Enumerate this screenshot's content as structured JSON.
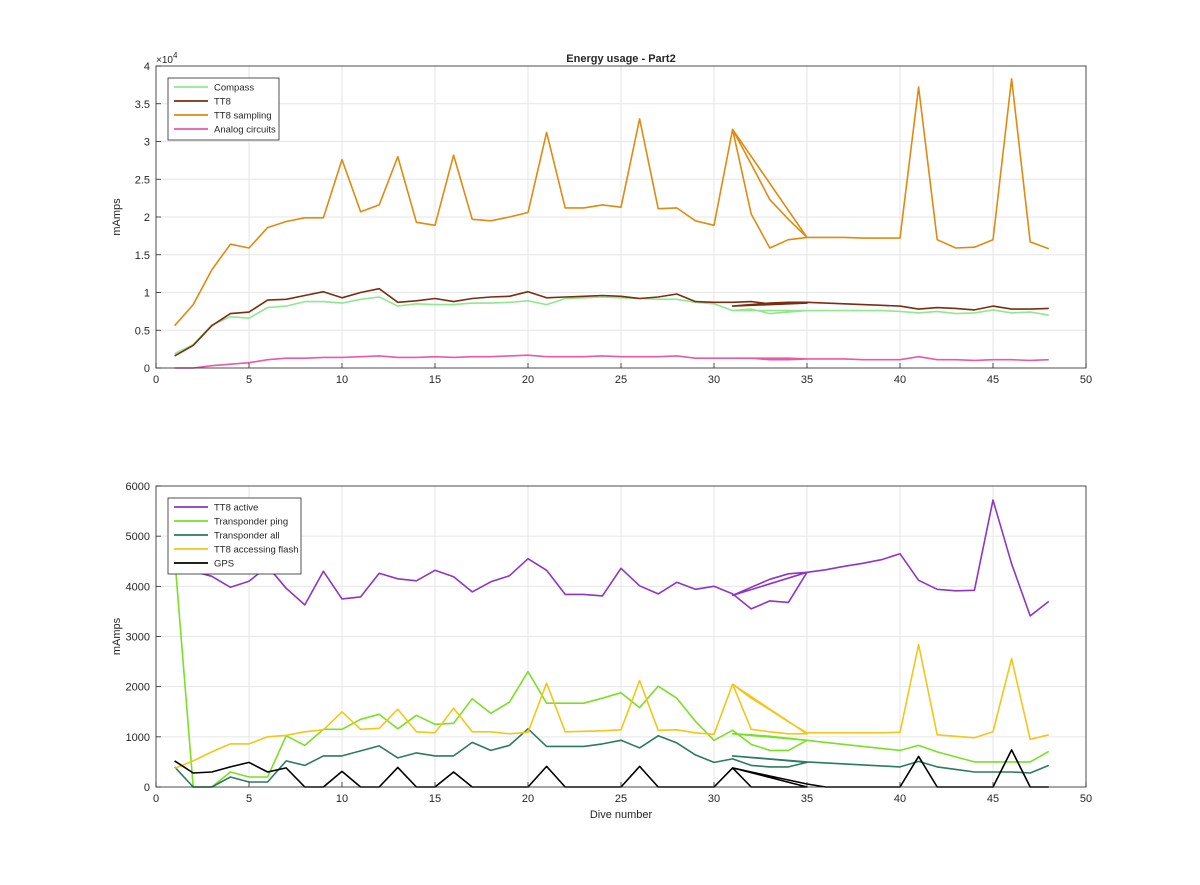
{
  "figure": {
    "title": "Energy usage - Part2"
  },
  "chart_data": [
    {
      "type": "line",
      "title": "Energy usage - Part2",
      "xlabel": "",
      "ylabel": "mAmps",
      "xlim": [
        0,
        50
      ],
      "ylim": [
        0,
        40000
      ],
      "x_ticks": [
        0,
        5,
        10,
        15,
        20,
        25,
        30,
        35,
        40,
        45,
        50
      ],
      "x_tick_labels": [
        "0",
        "5",
        "10",
        "15",
        "20",
        "25",
        "30",
        "35",
        "40",
        "45",
        "50"
      ],
      "y_ticks": [
        0,
        5000,
        10000,
        15000,
        20000,
        25000,
        30000,
        35000,
        40000
      ],
      "y_tick_labels": [
        "0",
        "0.5",
        "1",
        "1.5",
        "2",
        "2.5",
        "3",
        "3.5",
        "4"
      ],
      "y_exponent_label": "×10",
      "y_exponent_power": "4",
      "grid": true,
      "legend_position": "top-left",
      "x": [
        1,
        2,
        3,
        4,
        5,
        6,
        7,
        8,
        9,
        10,
        11,
        12,
        13,
        14,
        15,
        16,
        17,
        18,
        19,
        20,
        21,
        22,
        23,
        24,
        25,
        26,
        27,
        28,
        29,
        30,
        31,
        32,
        33,
        34,
        35,
        31,
        32,
        33,
        34,
        35,
        36,
        37,
        38,
        39,
        40,
        41,
        42,
        43,
        44,
        45,
        46,
        47,
        48
      ],
      "series": [
        {
          "name": "Compass",
          "color": "#8fe88f",
          "values": [
            1900,
            3100,
            5700,
            6800,
            6600,
            8000,
            8200,
            8800,
            8800,
            8600,
            9100,
            9400,
            8200,
            8500,
            8400,
            8400,
            8600,
            8600,
            8700,
            8900,
            8400,
            9200,
            9300,
            9400,
            9300,
            9200,
            9100,
            9100,
            8700,
            8500,
            7600,
            7800,
            7200,
            7400,
            7600,
            7600,
            7600,
            7600,
            7600,
            7600,
            7600,
            7600,
            7600,
            7600,
            7500,
            7300,
            7500,
            7200,
            7300,
            7700,
            7300,
            7400,
            7000
          ]
        },
        {
          "name": "TT8",
          "color": "#7a2e10",
          "values": [
            1600,
            3000,
            5600,
            7200,
            7400,
            9000,
            9100,
            9600,
            10100,
            9300,
            10000,
            10500,
            8700,
            8900,
            9200,
            8800,
            9200,
            9400,
            9500,
            10100,
            9300,
            9400,
            9500,
            9600,
            9500,
            9200,
            9400,
            9800,
            8800,
            8700,
            8700,
            8800,
            8500,
            8600,
            8600,
            8200,
            8400,
            8600,
            8700,
            8700,
            8600,
            8500,
            8400,
            8300,
            8200,
            7800,
            8000,
            7900,
            7700,
            8200,
            7800,
            7800,
            7900
          ]
        },
        {
          "name": "TT8 sampling",
          "color": "#e08a10",
          "values": [
            5600,
            8400,
            13000,
            16400,
            15900,
            18600,
            19400,
            19900,
            19900,
            27600,
            20700,
            21600,
            28000,
            19300,
            18900,
            28200,
            19700,
            19500,
            20000,
            20600,
            31200,
            21200,
            21200,
            21600,
            21300,
            33000,
            21100,
            21200,
            19500,
            18900,
            31600,
            20400,
            15900,
            17000,
            17300,
            31600,
            27000,
            22300,
            19700,
            17300,
            17300,
            17300,
            17200,
            17200,
            17200,
            37200,
            17000,
            15900,
            16000,
            17000,
            38300,
            16700,
            15800
          ]
        },
        {
          "name": "Analog circuits",
          "color": "#e85aa5",
          "values": [
            0,
            0,
            300,
            500,
            700,
            1100,
            1300,
            1300,
            1400,
            1400,
            1500,
            1600,
            1400,
            1400,
            1500,
            1400,
            1500,
            1500,
            1600,
            1700,
            1500,
            1500,
            1500,
            1600,
            1500,
            1500,
            1500,
            1600,
            1300,
            1300,
            1300,
            1300,
            1100,
            1100,
            1200,
            1300,
            1300,
            1300,
            1300,
            1200,
            1200,
            1200,
            1100,
            1100,
            1100,
            1500,
            1100,
            1100,
            1000,
            1100,
            1100,
            1000,
            1100
          ]
        }
      ]
    },
    {
      "type": "line",
      "title": "",
      "xlabel": "Dive number",
      "ylabel": "mAmps",
      "xlim": [
        0,
        50
      ],
      "ylim": [
        0,
        6000
      ],
      "x_ticks": [
        0,
        5,
        10,
        15,
        20,
        25,
        30,
        35,
        40,
        45,
        50
      ],
      "x_tick_labels": [
        "0",
        "5",
        "10",
        "15",
        "20",
        "25",
        "30",
        "35",
        "40",
        "45",
        "50"
      ],
      "y_ticks": [
        0,
        1000,
        2000,
        3000,
        4000,
        5000,
        6000
      ],
      "y_tick_labels": [
        "0",
        "1000",
        "2000",
        "3000",
        "4000",
        "5000",
        "6000"
      ],
      "grid": true,
      "legend_position": "top-left",
      "x": [
        1,
        2,
        3,
        4,
        5,
        6,
        7,
        8,
        9,
        10,
        11,
        12,
        13,
        14,
        15,
        16,
        17,
        18,
        19,
        20,
        21,
        22,
        23,
        24,
        25,
        26,
        27,
        28,
        29,
        30,
        31,
        32,
        33,
        34,
        35,
        31,
        32,
        33,
        34,
        35,
        36,
        37,
        38,
        39,
        40,
        41,
        42,
        43,
        44,
        45,
        46,
        47,
        48
      ],
      "series": [
        {
          "name": "TT8 active",
          "color": "#8e35c4",
          "values": [
            4700,
            4300,
            4200,
            3980,
            4100,
            4400,
            3960,
            3630,
            4300,
            3750,
            3790,
            4260,
            4150,
            4110,
            4320,
            4190,
            3890,
            4090,
            4210,
            4550,
            4320,
            3840,
            3840,
            3810,
            4360,
            4010,
            3850,
            4080,
            3940,
            4000,
            3850,
            3550,
            3710,
            3680,
            4280,
            3820,
            3980,
            4140,
            4250,
            4280,
            4330,
            4400,
            4460,
            4530,
            4650,
            4120,
            3940,
            3910,
            3920,
            5720,
            4450,
            3410,
            3700
          ]
        },
        {
          "name": "Transponder ping",
          "color": "#79e024",
          "values": [
            4600,
            0,
            0,
            300,
            200,
            200,
            1020,
            830,
            1150,
            1150,
            1350,
            1450,
            1160,
            1430,
            1250,
            1270,
            1760,
            1470,
            1690,
            2300,
            1670,
            1670,
            1670,
            1770,
            1880,
            1580,
            2010,
            1770,
            1310,
            930,
            1130,
            850,
            730,
            730,
            930,
            1060,
            1040,
            1010,
            970,
            930,
            890,
            850,
            810,
            770,
            730,
            830,
            700,
            600,
            500,
            500,
            500,
            500,
            710
          ]
        },
        {
          "name": "Transponder all",
          "color": "#2c7a61",
          "values": [
            400,
            0,
            0,
            200,
            100,
            100,
            520,
            430,
            620,
            620,
            720,
            820,
            580,
            680,
            620,
            620,
            890,
            730,
            830,
            1160,
            810,
            810,
            810,
            860,
            930,
            780,
            1020,
            880,
            640,
            490,
            560,
            430,
            400,
            400,
            490,
            620,
            590,
            560,
            530,
            500,
            480,
            460,
            440,
            420,
            400,
            510,
            400,
            350,
            300,
            300,
            300,
            280,
            430
          ]
        },
        {
          "name": "TT8 accessing flash",
          "color": "#f5c518",
          "values": [
            370,
            520,
            700,
            860,
            860,
            1000,
            1030,
            1100,
            1140,
            1500,
            1150,
            1170,
            1550,
            1100,
            1080,
            1570,
            1100,
            1100,
            1060,
            1090,
            2070,
            1100,
            1110,
            1120,
            1140,
            2120,
            1130,
            1140,
            1080,
            1050,
            2050,
            1150,
            1100,
            1060,
            1060,
            2050,
            1770,
            1540,
            1300,
            1080,
            1080,
            1080,
            1080,
            1080,
            1090,
            2840,
            1040,
            1010,
            980,
            1100,
            2560,
            950,
            1040
          ]
        },
        {
          "name": "GPS",
          "color": "#000000",
          "values": [
            520,
            280,
            300,
            400,
            490,
            300,
            380,
            0,
            0,
            310,
            0,
            0,
            390,
            0,
            0,
            300,
            0,
            0,
            0,
            0,
            410,
            0,
            0,
            0,
            0,
            410,
            0,
            0,
            0,
            0,
            380,
            0,
            0,
            0,
            0,
            380,
            300,
            220,
            140,
            60,
            0,
            0,
            0,
            0,
            0,
            610,
            0,
            0,
            0,
            0,
            740,
            0,
            0
          ]
        }
      ]
    }
  ]
}
